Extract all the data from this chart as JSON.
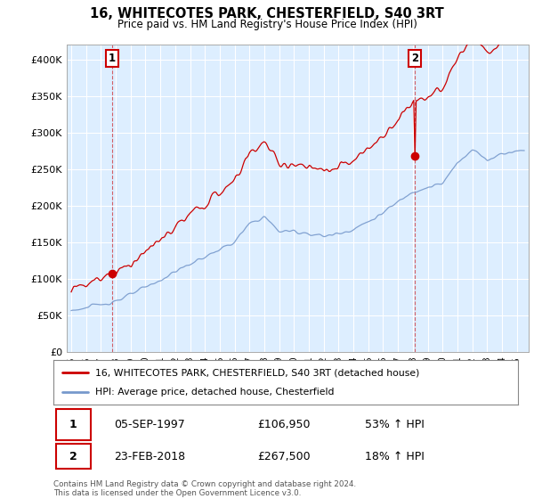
{
  "title": "16, WHITECOTES PARK, CHESTERFIELD, S40 3RT",
  "subtitle": "Price paid vs. HM Land Registry's House Price Index (HPI)",
  "legend_line1": "16, WHITECOTES PARK, CHESTERFIELD, S40 3RT (detached house)",
  "legend_line2": "HPI: Average price, detached house, Chesterfield",
  "footnote": "Contains HM Land Registry data © Crown copyright and database right 2024.\nThis data is licensed under the Open Government Licence v3.0.",
  "sale1_date": "05-SEP-1997",
  "sale1_price": "£106,950",
  "sale1_hpi": "53% ↑ HPI",
  "sale2_date": "23-FEB-2018",
  "sale2_price": "£267,500",
  "sale2_hpi": "18% ↑ HPI",
  "red_color": "#cc0000",
  "blue_color": "#7799cc",
  "chart_bg": "#ddeeff",
  "grid_color": "#ffffff",
  "bg_color": "#ffffff",
  "ylim": [
    0,
    420000
  ],
  "yticks": [
    0,
    50000,
    100000,
    150000,
    200000,
    250000,
    300000,
    350000,
    400000
  ],
  "ytick_labels": [
    "£0",
    "£50K",
    "£100K",
    "£150K",
    "£200K",
    "£250K",
    "£300K",
    "£350K",
    "£400K"
  ],
  "sale1_x": 1997.75,
  "sale1_y": 106950,
  "sale2_x": 2018.15,
  "sale2_y": 267500,
  "xmin": 1995.0,
  "xmax": 2025.5
}
